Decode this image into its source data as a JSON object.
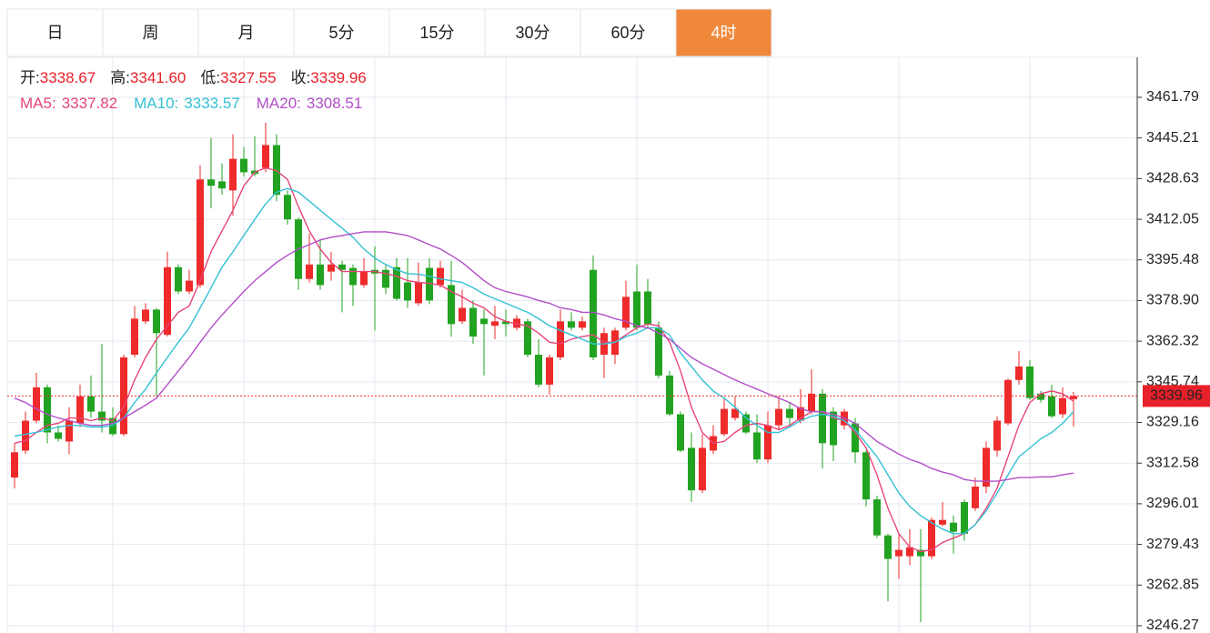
{
  "tabs": [
    "日",
    "周",
    "月",
    "5分",
    "15分",
    "30分",
    "60分",
    "4时"
  ],
  "active_tab": 7,
  "chart_data": {
    "type": "candlestick",
    "quote": [
      {
        "label": "开:",
        "value_label": "3338.67"
      },
      {
        "label": "高:",
        "value_label": "3341.60"
      },
      {
        "label": "低:",
        "value_label": "3327.55"
      },
      {
        "label": "收:",
        "value_label": "3339.96"
      }
    ],
    "up_color": "#ee2a2a",
    "down_color": "#21a321",
    "open": [
      3306.7,
      3317.7,
      3329.9,
      3343.5,
      3325.1,
      3321.4,
      3328.8,
      3339.8,
      3333.6,
      3331.0,
      3324.4,
      3356.8,
      3370.4,
      3375.2,
      3364.9,
      3392.5,
      3382.6,
      3385.2,
      3428.3,
      3427.5,
      3423.8,
      3436.7,
      3431.9,
      3433.0,
      3442.3,
      3422.0,
      3412.0,
      3387.7,
      3393.6,
      3390.7,
      3393.6,
      3392.2,
      3385.2,
      3391.4,
      3391.4,
      3392.5,
      3386.3,
      3377.8,
      3392.2,
      3385.2,
      3385.2,
      3370.4,
      3375.9,
      3371.5,
      3368.6,
      3370.4,
      3367.8,
      3370.4,
      3356.8,
      3344.6,
      3355.7,
      3370.4,
      3367.8,
      3391.4,
      3356.8,
      3356.8,
      3367.8,
      3382.6,
      3382.6,
      3367.8,
      3348.3,
      3332.5,
      3318.8,
      3301.5,
      3317.7,
      3324.4,
      3331.0,
      3332.5,
      3325.1,
      3314.1,
      3328.0,
      3334.7,
      3329.9,
      3333.6,
      3340.9,
      3333.6,
      3328.0,
      3328.8,
      3317.0,
      3297.8,
      3283.1,
      3274.6,
      3274.6,
      3277.2,
      3274.6,
      3287.5,
      3288.3,
      3296.7,
      3294.2,
      3303.0,
      3317.7,
      3328.8,
      3346.5,
      3352.0,
      3340.9,
      3339.8,
      3332.5,
      3338.67
    ],
    "high": [
      3320.7,
      3333.6,
      3349.4,
      3344.6,
      3328.0,
      3335.4,
      3344.6,
      3348.3,
      3361.2,
      3335.4,
      3356.8,
      3376.7,
      3377.8,
      3375.9,
      3398.8,
      3393.6,
      3391.4,
      3434.1,
      3445.2,
      3434.9,
      3446.7,
      3441.5,
      3445.9,
      3451.5,
      3446.7,
      3423.8,
      3412.8,
      3406.2,
      3403.6,
      3398.8,
      3395.1,
      3393.6,
      3396.2,
      3401.0,
      3393.6,
      3396.2,
      3396.2,
      3394.4,
      3396.2,
      3395.1,
      3395.1,
      3383.3,
      3378.9,
      3375.2,
      3376.7,
      3375.2,
      3373.0,
      3371.5,
      3363.1,
      3356.8,
      3375.2,
      3374.1,
      3372.3,
      3397.3,
      3367.8,
      3367.8,
      3387.0,
      3393.6,
      3387.7,
      3370.4,
      3350.2,
      3333.6,
      3325.1,
      3324.4,
      3328.0,
      3339.1,
      3339.8,
      3333.6,
      3332.5,
      3333.6,
      3339.8,
      3337.3,
      3342.8,
      3350.9,
      3342.8,
      3335.4,
      3334.7,
      3331.0,
      3317.7,
      3299.3,
      3283.8,
      3283.8,
      3285.7,
      3285.7,
      3290.5,
      3296.7,
      3291.2,
      3297.8,
      3306.7,
      3321.4,
      3331.7,
      3347.2,
      3358.3,
      3354.6,
      3342.0,
      3344.6,
      3343.5,
      3341.6
    ],
    "low": [
      3302.3,
      3316.3,
      3328.8,
      3320.7,
      3321.4,
      3316.3,
      3327.3,
      3331.0,
      3325.1,
      3323.6,
      3323.6,
      3355.7,
      3369.3,
      3339.8,
      3364.2,
      3381.5,
      3381.5,
      3384.1,
      3416.5,
      3422.0,
      3413.5,
      3429.4,
      3429.4,
      3431.2,
      3419.4,
      3409.8,
      3383.3,
      3386.3,
      3383.3,
      3387.0,
      3374.1,
      3376.7,
      3384.1,
      3366.7,
      3381.5,
      3378.9,
      3375.9,
      3376.7,
      3377.4,
      3384.1,
      3364.2,
      3369.3,
      3361.2,
      3348.3,
      3363.1,
      3364.2,
      3366.7,
      3355.7,
      3343.5,
      3340.6,
      3354.6,
      3366.7,
      3366.7,
      3354.6,
      3347.2,
      3353.1,
      3366.7,
      3366.7,
      3367.8,
      3347.2,
      3331.7,
      3317.0,
      3296.7,
      3300.4,
      3316.3,
      3323.6,
      3329.9,
      3324.4,
      3312.6,
      3312.6,
      3326.2,
      3328.0,
      3328.8,
      3332.5,
      3310.4,
      3313.4,
      3326.2,
      3312.6,
      3294.9,
      3282.0,
      3256.2,
      3265.4,
      3271.0,
      3247.7,
      3273.5,
      3286.8,
      3275.7,
      3280.9,
      3293.1,
      3300.4,
      3315.2,
      3328.0,
      3344.6,
      3338.4,
      3337.3,
      3331.0,
      3331.0,
      3327.55
    ],
    "close": [
      3317.0,
      3329.9,
      3343.5,
      3325.1,
      3322.5,
      3329.9,
      3339.8,
      3333.6,
      3329.9,
      3324.4,
      3355.7,
      3371.5,
      3375.2,
      3365.6,
      3392.5,
      3382.6,
      3387.0,
      3428.3,
      3425.7,
      3424.6,
      3436.7,
      3431.2,
      3430.5,
      3442.3,
      3422.0,
      3412.0,
      3387.7,
      3393.6,
      3385.2,
      3393.6,
      3391.4,
      3385.2,
      3390.7,
      3389.9,
      3384.1,
      3379.6,
      3378.9,
      3386.3,
      3378.9,
      3392.2,
      3369.3,
      3375.9,
      3364.2,
      3369.3,
      3370.4,
      3369.3,
      3371.5,
      3356.8,
      3344.6,
      3355.7,
      3370.4,
      3367.8,
      3370.4,
      3355.7,
      3365.6,
      3366.7,
      3380.4,
      3367.8,
      3369.3,
      3348.3,
      3332.5,
      3317.7,
      3301.5,
      3318.8,
      3323.6,
      3334.7,
      3334.7,
      3325.1,
      3314.1,
      3328.0,
      3334.7,
      3331.0,
      3335.4,
      3340.9,
      3320.7,
      3319.9,
      3333.6,
      3317.0,
      3297.8,
      3283.1,
      3273.5,
      3277.2,
      3278.3,
      3274.6,
      3289.4,
      3289.4,
      3284.6,
      3283.8,
      3303.0,
      3318.8,
      3329.9,
      3346.5,
      3352.0,
      3339.1,
      3338.4,
      3331.7,
      3339.1,
      3339.96
    ],
    "series": [
      {
        "name": "MA5:",
        "color": "#e8457a",
        "values": [
          3320.7,
          3321.8,
          3325.1,
          3328.0,
          3328.8,
          3331.0,
          3331.0,
          3329.9,
          3331.0,
          3329.9,
          3335.4,
          3346.5,
          3355.7,
          3363.1,
          3368.6,
          3374.1,
          3376.7,
          3387.0,
          3398.8,
          3407.3,
          3415.7,
          3425.7,
          3431.2,
          3433.0,
          3431.9,
          3428.3,
          3417.2,
          3407.3,
          3399.9,
          3394.4,
          3390.7,
          3390.7,
          3390.7,
          3390.7,
          3389.9,
          3388.8,
          3387.0,
          3386.3,
          3385.9,
          3385.2,
          3382.6,
          3380.4,
          3377.8,
          3375.9,
          3372.3,
          3370.4,
          3369.3,
          3368.6,
          3365.6,
          3361.9,
          3361.2,
          3363.1,
          3364.2,
          3364.9,
          3361.9,
          3361.9,
          3364.9,
          3367.8,
          3369.3,
          3368.6,
          3361.9,
          3350.2,
          3335.4,
          3325.1,
          3320.7,
          3321.4,
          3325.1,
          3328.0,
          3328.8,
          3328.0,
          3326.2,
          3328.0,
          3331.0,
          3333.6,
          3333.6,
          3331.0,
          3329.9,
          3325.1,
          3318.8,
          3307.8,
          3294.2,
          3283.8,
          3278.3,
          3276.5,
          3277.2,
          3280.2,
          3282.0,
          3283.8,
          3287.5,
          3294.2,
          3302.3,
          3315.2,
          3328.0,
          3337.3,
          3340.9,
          3342.0,
          3340.9,
          3337.82
        ]
      },
      {
        "name": "MA10:",
        "color": "#33c1d4",
        "values": [
          3323.6,
          3324.4,
          3325.1,
          3326.2,
          3327.3,
          3328.0,
          3328.0,
          3327.3,
          3327.3,
          3328.0,
          3331.0,
          3337.3,
          3342.8,
          3349.4,
          3355.7,
          3361.9,
          3367.8,
          3375.9,
          3384.1,
          3392.5,
          3398.8,
          3405.4,
          3412.0,
          3418.3,
          3423.1,
          3424.6,
          3423.1,
          3419.4,
          3415.7,
          3412.0,
          3408.4,
          3404.7,
          3399.9,
          3396.2,
          3393.6,
          3391.4,
          3389.9,
          3389.6,
          3388.8,
          3387.7,
          3387.0,
          3386.3,
          3384.1,
          3381.5,
          3379.6,
          3377.8,
          3375.9,
          3374.1,
          3371.5,
          3368.6,
          3366.7,
          3364.9,
          3363.1,
          3361.2,
          3361.2,
          3361.9,
          3364.2,
          3365.6,
          3367.8,
          3367.8,
          3364.9,
          3357.5,
          3352.0,
          3346.5,
          3342.0,
          3339.1,
          3335.4,
          3331.0,
          3328.0,
          3325.1,
          3325.1,
          3327.3,
          3329.9,
          3331.7,
          3332.5,
          3331.7,
          3329.9,
          3326.2,
          3320.7,
          3315.2,
          3307.8,
          3300.4,
          3294.9,
          3291.2,
          3288.3,
          3285.7,
          3283.8,
          3283.8,
          3287.5,
          3293.1,
          3300.4,
          3307.8,
          3315.2,
          3318.8,
          3322.5,
          3325.1,
          3328.8,
          3333.57
        ]
      },
      {
        "name": "MA20:",
        "color": "#b24ec8",
        "values": [
          3339.1,
          3337.3,
          3334.7,
          3332.5,
          3331.0,
          3329.9,
          3328.8,
          3328.0,
          3328.0,
          3328.8,
          3331.0,
          3333.6,
          3336.2,
          3339.1,
          3344.6,
          3350.2,
          3355.7,
          3361.9,
          3367.8,
          3373.0,
          3377.8,
          3382.6,
          3387.0,
          3390.7,
          3394.4,
          3397.3,
          3399.9,
          3401.7,
          3403.6,
          3404.7,
          3405.4,
          3406.2,
          3406.9,
          3406.9,
          3406.9,
          3406.2,
          3405.4,
          3403.6,
          3401.7,
          3399.9,
          3397.3,
          3394.4,
          3390.7,
          3387.0,
          3384.1,
          3382.6,
          3381.5,
          3380.4,
          3378.9,
          3377.8,
          3375.9,
          3375.2,
          3374.1,
          3374.1,
          3373.0,
          3371.5,
          3370.4,
          3368.6,
          3367.8,
          3365.6,
          3363.1,
          3359.4,
          3355.7,
          3353.1,
          3350.9,
          3348.7,
          3346.5,
          3344.6,
          3342.8,
          3340.9,
          3339.1,
          3337.3,
          3334.7,
          3333.6,
          3333.6,
          3332.5,
          3331.0,
          3328.8,
          3325.1,
          3321.4,
          3318.8,
          3316.3,
          3314.1,
          3312.6,
          3310.4,
          3308.9,
          3307.8,
          3305.9,
          3305.2,
          3305.2,
          3305.2,
          3305.9,
          3306.7,
          3306.7,
          3307.0,
          3307.0,
          3307.8,
          3308.51
        ]
      }
    ],
    "ylim": [
      3243.3,
      3478.1
    ],
    "yticks": [
      3461.79,
      3445.21,
      3428.63,
      3412.05,
      3395.48,
      {
        "value": 3378.9,
        "label": "3378.90"
      },
      3362.32,
      3345.74,
      3329.16,
      3312.58,
      3296.01,
      3279.43,
      3262.85,
      3246.27
    ],
    "grid": true
  }
}
